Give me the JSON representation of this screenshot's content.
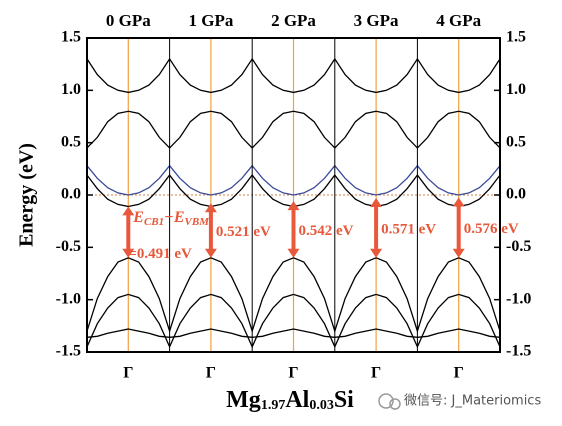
{
  "chart_data": {
    "type": "band",
    "panel_titles": [
      "0 GPa",
      "1 GPa",
      "2 GPa",
      "3 GPa",
      "4 GPa"
    ],
    "ylabel": "Energy (eV)",
    "xlabel_parts": [
      "Mg",
      "1.97",
      "Al",
      "0.03",
      "Si"
    ],
    "xlim": [
      0,
      5
    ],
    "xticks": [
      {
        "value": 0.5,
        "label": "Γ"
      },
      {
        "value": 1.5,
        "label": "Γ"
      },
      {
        "value": 2.5,
        "label": "Γ"
      },
      {
        "value": 3.5,
        "label": "Γ"
      },
      {
        "value": 4.5,
        "label": "Γ"
      }
    ],
    "panel_edges": [
      1,
      2,
      3,
      4
    ],
    "ylim": [
      -1.5,
      1.5
    ],
    "yticks": [
      1.5,
      {
        "value": 1,
        "label": "1.0"
      },
      0.5,
      {
        "value": 0,
        "label": "0.0"
      },
      -0.5,
      {
        "value": -1,
        "label": "-1.0"
      },
      -1.5
    ],
    "y2lim": [
      -1.5,
      1.5
    ],
    "y2ticks": [
      1.5,
      {
        "value": 1,
        "label": "1.0"
      },
      0.5,
      {
        "value": 0,
        "label": "0.0"
      },
      -0.5,
      {
        "value": -1,
        "label": "-1.0"
      },
      -1.5
    ],
    "fermi_level": 0,
    "x": [
      0,
      0.125,
      0.25,
      0.375,
      0.5,
      0.625,
      0.75,
      0.875,
      1,
      1.125,
      1.25,
      1.375,
      1.5,
      1.625,
      1.75,
      1.875,
      2,
      2.125,
      2.25,
      2.375,
      2.5,
      2.625,
      2.75,
      2.875,
      3,
      3.125,
      3.25,
      3.375,
      3.5,
      3.625,
      3.75,
      3.875,
      4,
      4.125,
      4.25,
      4.375,
      4.5,
      4.625,
      4.75,
      4.875,
      5
    ],
    "series": [
      {
        "color": "#000000",
        "values": [
          -1.3,
          -0.99,
          -0.78,
          -0.64,
          -0.6,
          -0.64,
          -0.78,
          -0.99,
          -1.3,
          -0.99,
          -0.78,
          -0.64,
          -0.6,
          -0.64,
          -0.78,
          -0.99,
          -1.3,
          -0.99,
          -0.78,
          -0.64,
          -0.6,
          -0.64,
          -0.78,
          -0.99,
          -1.3,
          -0.99,
          -0.78,
          -0.64,
          -0.6,
          -0.64,
          -0.78,
          -0.99,
          -1.3,
          -0.99,
          -0.78,
          -0.64,
          -0.6,
          -0.64,
          -0.78,
          -0.99,
          -1.3
        ]
      },
      {
        "color": "#000000",
        "values": [
          -1.45,
          -1.23,
          -1.08,
          -0.98,
          -0.95,
          -0.98,
          -1.08,
          -1.23,
          -1.45,
          -1.23,
          -1.08,
          -0.98,
          -0.95,
          -0.98,
          -1.08,
          -1.23,
          -1.45,
          -1.23,
          -1.08,
          -0.98,
          -0.95,
          -0.98,
          -1.08,
          -1.23,
          -1.45,
          -1.23,
          -1.08,
          -0.98,
          -0.95,
          -0.98,
          -1.08,
          -1.23,
          -1.45,
          -1.23,
          -1.08,
          -0.98,
          -0.95,
          -0.98,
          -1.08,
          -1.23,
          -1.45
        ]
      },
      {
        "color": "#000000",
        "values": [
          -1.36,
          -1.35,
          -1.32,
          -1.3,
          -1.28,
          -1.3,
          -1.32,
          -1.35,
          -1.36,
          -1.35,
          -1.32,
          -1.3,
          -1.28,
          -1.3,
          -1.32,
          -1.35,
          -1.36,
          -1.35,
          -1.32,
          -1.3,
          -1.28,
          -1.3,
          -1.32,
          -1.35,
          -1.36,
          -1.35,
          -1.32,
          -1.3,
          -1.28,
          -1.3,
          -1.32,
          -1.35,
          -1.36,
          -1.35,
          -1.32,
          -1.3,
          -1.28,
          -1.3,
          -1.32,
          -1.35,
          -1.36
        ]
      },
      {
        "color": "#000000",
        "values": [
          0.19,
          0.06,
          -0.04,
          -0.09,
          -0.11,
          -0.09,
          -0.04,
          0.06,
          0.19,
          0.06,
          -0.04,
          -0.09,
          -0.11,
          -0.09,
          -0.04,
          0.06,
          0.19,
          0.06,
          -0.04,
          -0.09,
          -0.11,
          -0.09,
          -0.04,
          0.06,
          0.19,
          0.06,
          -0.04,
          -0.09,
          -0.11,
          -0.09,
          -0.04,
          0.06,
          0.19,
          0.06,
          -0.04,
          -0.09,
          -0.11,
          -0.09,
          -0.04,
          0.06,
          0.19
        ]
      },
      {
        "color": "#3a4a9a",
        "values": [
          0.28,
          0.16,
          0.07,
          0.02,
          0,
          0.02,
          0.07,
          0.16,
          0.28,
          0.16,
          0.07,
          0.02,
          0,
          0.02,
          0.07,
          0.16,
          0.28,
          0.16,
          0.07,
          0.02,
          0,
          0.02,
          0.07,
          0.16,
          0.28,
          0.16,
          0.07,
          0.02,
          0,
          0.02,
          0.07,
          0.16,
          0.28,
          0.16,
          0.07,
          0.02,
          0,
          0.02,
          0.07,
          0.16,
          0.28
        ]
      },
      {
        "color": "#000000",
        "values": [
          0.45,
          0.55,
          0.7,
          0.78,
          0.8,
          0.78,
          0.7,
          0.55,
          0.45,
          0.55,
          0.7,
          0.78,
          0.8,
          0.78,
          0.7,
          0.55,
          0.45,
          0.55,
          0.7,
          0.78,
          0.8,
          0.78,
          0.7,
          0.55,
          0.45,
          0.55,
          0.7,
          0.78,
          0.8,
          0.78,
          0.7,
          0.55,
          0.45,
          0.55,
          0.7,
          0.78,
          0.8,
          0.78,
          0.7,
          0.55,
          0.45
        ]
      },
      {
        "color": "#000000",
        "values": [
          1.3,
          1.15,
          1.05,
          1,
          0.98,
          1,
          1.05,
          1.15,
          1.3,
          1.15,
          1.05,
          1,
          0.98,
          1,
          1.05,
          1.15,
          1.3,
          1.15,
          1.05,
          1,
          0.98,
          1,
          1.05,
          1.15,
          1.3,
          1.15,
          1.05,
          1,
          0.98,
          1,
          1.05,
          1.15,
          1.3,
          1.15,
          1.05,
          1,
          0.98,
          1,
          1.05,
          1.15,
          1.3
        ]
      }
    ],
    "gaps": {
      "color": "#e8583a",
      "vbm": [
        -0.6,
        -0.6,
        -0.6,
        -0.6,
        -0.6
      ],
      "values": [
        0.491,
        0.521,
        0.542,
        0.571,
        0.576
      ],
      "value_labels": [
        "=0.491 eV",
        "0.521 eV",
        "0.542 eV",
        "0.571 eV",
        "0.576 eV"
      ],
      "formula_parts": [
        "E",
        "CB1",
        "−E",
        "VBM"
      ]
    },
    "watermark": "微信号: J_Materiomics"
  }
}
